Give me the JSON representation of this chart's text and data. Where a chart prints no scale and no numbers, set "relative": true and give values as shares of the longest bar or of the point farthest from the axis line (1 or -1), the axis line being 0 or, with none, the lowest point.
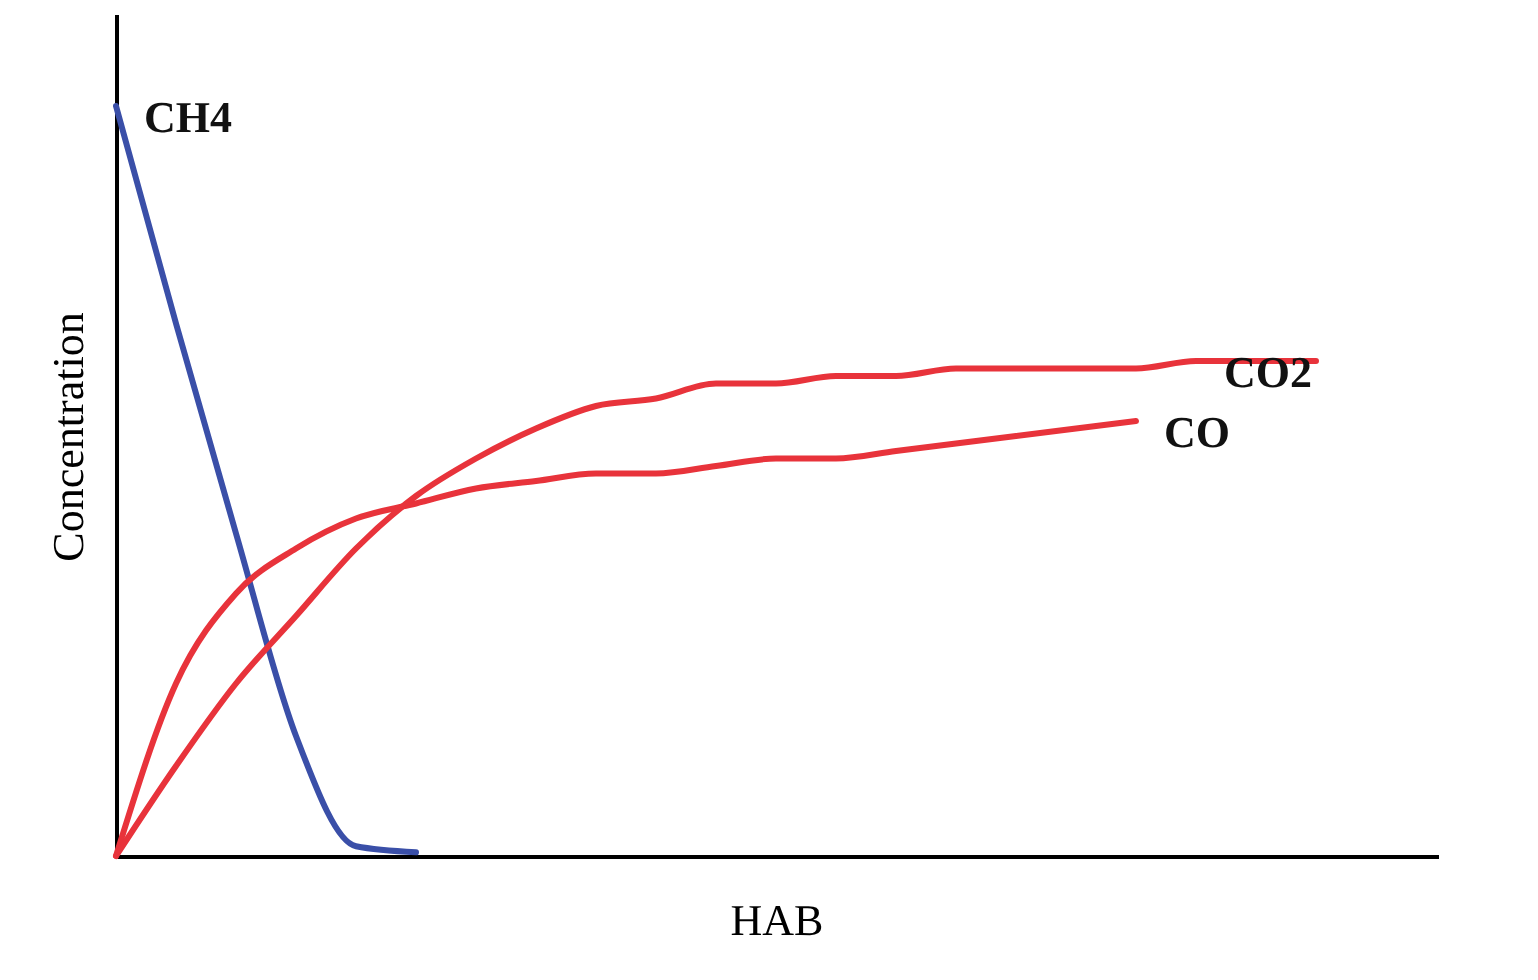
{
  "chart_data": {
    "type": "line",
    "xlabel": "HAB",
    "ylabel": "Concentration",
    "relative": true,
    "tick_labels": false,
    "grid": false,
    "legend": false,
    "marker": "none",
    "line_style": "solid",
    "categories": [
      null,
      null,
      null,
      null,
      null,
      null,
      null,
      null,
      null,
      null,
      null,
      null,
      null,
      null,
      null,
      null,
      null,
      null,
      null,
      null,
      null,
      null,
      null
    ],
    "series": [
      {
        "name": "CH4",
        "color": "#3a4fa8",
        "values": [
          1.0,
          0.71,
          0.43,
          0.16,
          0.013,
          0.005,
          null,
          null,
          null,
          null,
          null,
          null,
          null,
          null,
          null,
          null,
          null,
          null,
          null,
          null,
          null,
          null,
          null
        ]
      },
      {
        "name": "CO",
        "color": "#e8333b",
        "values": [
          0,
          0.23,
          0.35,
          0.41,
          0.45,
          0.47,
          0.49,
          0.5,
          0.51,
          0.51,
          0.52,
          0.53,
          0.53,
          0.54,
          0.55,
          0.56,
          0.57,
          0.58,
          null,
          null,
          null,
          null,
          null
        ]
      },
      {
        "name": "CO2",
        "color": "#e8333b",
        "values": [
          0,
          0.12,
          0.23,
          0.32,
          0.41,
          0.48,
          0.53,
          0.57,
          0.6,
          0.61,
          0.63,
          0.63,
          0.64,
          0.64,
          0.65,
          0.65,
          0.65,
          0.65,
          0.66,
          0.66,
          0.66,
          null,
          null
        ]
      }
    ]
  }
}
